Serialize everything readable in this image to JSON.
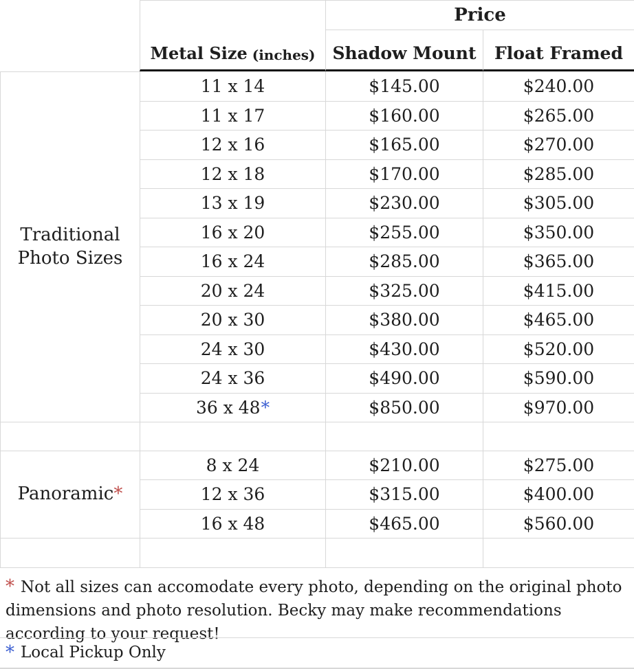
{
  "header": {
    "price": "Price",
    "metal_size": "Metal Size",
    "metal_size_unit": "(inches)",
    "shadow_mount": "Shadow Mount",
    "float_framed": "Float Framed"
  },
  "groups": [
    {
      "label": "Traditional Photo Sizes",
      "rows": [
        {
          "size": "11 x 14",
          "shadow_mount": "$145.00",
          "float_framed": "$240.00"
        },
        {
          "size": "11 x 17",
          "shadow_mount": "$160.00",
          "float_framed": "$265.00"
        },
        {
          "size": "12 x 16",
          "shadow_mount": "$165.00",
          "float_framed": "$270.00"
        },
        {
          "size": "12 x 18",
          "shadow_mount": "$170.00",
          "float_framed": "$285.00"
        },
        {
          "size": "13 x 19",
          "shadow_mount": "$230.00",
          "float_framed": "$305.00"
        },
        {
          "size": "16 x 20",
          "shadow_mount": "$255.00",
          "float_framed": "$350.00"
        },
        {
          "size": "16 x 24",
          "shadow_mount": "$285.00",
          "float_framed": "$365.00"
        },
        {
          "size": "20 x 24",
          "shadow_mount": "$325.00",
          "float_framed": "$415.00"
        },
        {
          "size": "20 x 30",
          "shadow_mount": "$380.00",
          "float_framed": "$465.00"
        },
        {
          "size": "24 x 30",
          "shadow_mount": "$430.00",
          "float_framed": "$520.00"
        },
        {
          "size": "24 x 36",
          "shadow_mount": "$490.00",
          "float_framed": "$590.00"
        },
        {
          "size": "36 x 48",
          "size_note": "*",
          "shadow_mount": "$850.00",
          "float_framed": "$970.00"
        }
      ]
    },
    {
      "label": "Panoramic",
      "label_note": "*",
      "rows": [
        {
          "size": "8 x 24",
          "shadow_mount": "$210.00",
          "float_framed": "$275.00"
        },
        {
          "size": "12 x 36",
          "shadow_mount": "$315.00",
          "float_framed": "$400.00"
        },
        {
          "size": "16 x 48",
          "shadow_mount": "$465.00",
          "float_framed": "$560.00"
        }
      ]
    }
  ],
  "footnotes": [
    {
      "marker": "*",
      "text": "Not all sizes can accomodate every photo, depending on the original photo dimensions and photo resolution. Becky may make recommendations according to your request!"
    },
    {
      "marker": "*",
      "text": "Local Pickup Only"
    }
  ],
  "colors": {
    "footnote_red": "#c0504d",
    "footnote_blue": "#3c5fd1",
    "grid_line": "#d8d8d8",
    "header_rule": "#0a0a0a",
    "text": "#1e1e1e",
    "background": "#ffffff"
  }
}
